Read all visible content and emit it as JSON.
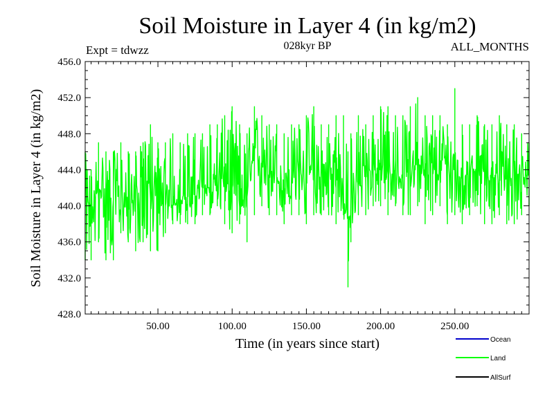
{
  "chart_data": {
    "type": "line",
    "title": "Soil Moisture in Layer 4 (in kg/m2)",
    "subtitle_left": "Expt = tdwzz",
    "subtitle_center": "028kyr BP",
    "subtitle_right": "ALL_MONTHS",
    "xlabel": "Time (in years since start)",
    "ylabel": "Soil Moisture in Layer 4 (in kg/m2)",
    "xlim": [
      1,
      300
    ],
    "ylim": [
      428,
      456
    ],
    "xticks": [
      50,
      100,
      150,
      200,
      250
    ],
    "xtick_labels": [
      "50.00",
      "100.00",
      "150.00",
      "200.00",
      "250.00"
    ],
    "yticks": [
      428,
      432,
      436,
      440,
      444,
      448,
      452,
      456
    ],
    "ytick_labels": [
      "428.0",
      "432.0",
      "436.0",
      "440.0",
      "444.0",
      "448.0",
      "452.0",
      "456.0"
    ],
    "grid": false,
    "legend_position": "bottom-right",
    "legend": [
      {
        "name": "Ocean",
        "color": "#0000cc"
      },
      {
        "name": "Land",
        "color": "#00ff00"
      },
      {
        "name": "AllSurf",
        "color": "#000000"
      }
    ],
    "series": [
      {
        "name": "Land",
        "color": "#00ff00",
        "x": [
          1,
          5,
          10,
          15,
          20,
          25,
          30,
          35,
          40,
          45,
          50,
          55,
          60,
          65,
          70,
          75,
          80,
          85,
          90,
          95,
          100,
          105,
          110,
          115,
          120,
          125,
          130,
          135,
          140,
          145,
          150,
          155,
          160,
          165,
          170,
          175,
          178,
          180,
          185,
          190,
          195,
          200,
          205,
          210,
          215,
          220,
          225,
          230,
          235,
          240,
          245,
          250,
          255,
          260,
          265,
          270,
          275,
          280,
          285,
          290,
          295,
          300
        ],
        "values": [
          441,
          439,
          442,
          441,
          442,
          440,
          440,
          441,
          442,
          442,
          441,
          440,
          440,
          441,
          441,
          441,
          442,
          442,
          443,
          443,
          442,
          442,
          441,
          445,
          445,
          444,
          443,
          442,
          443,
          444,
          443,
          444,
          443,
          443,
          443,
          442,
          438,
          440,
          443,
          444,
          444,
          444,
          443,
          444,
          443,
          444,
          445,
          443,
          444,
          444,
          444,
          444,
          443,
          444,
          444,
          444,
          443,
          444,
          443,
          443,
          444,
          444
        ],
        "min": [
          434,
          434,
          436,
          434,
          434,
          437,
          436,
          435,
          436,
          435,
          435,
          437,
          438,
          438,
          438,
          438,
          439,
          439,
          440,
          438,
          437,
          438,
          436,
          439,
          440,
          439,
          439,
          438,
          439,
          439,
          438,
          439,
          439,
          439,
          438,
          439,
          431,
          436,
          439,
          439,
          440,
          440,
          439,
          440,
          439,
          439,
          440,
          438,
          439,
          440,
          438,
          439,
          438,
          439,
          440,
          438,
          438,
          439,
          438,
          438,
          439,
          440
        ],
        "max": [
          446,
          444,
          447,
          446,
          446,
          447,
          446,
          446,
          447,
          449,
          447,
          447,
          448,
          447,
          448,
          448,
          448,
          449,
          449,
          450,
          451,
          449,
          448,
          451,
          450,
          449,
          449,
          448,
          449,
          449,
          450,
          451,
          449,
          449,
          450,
          450,
          446,
          448,
          450,
          449,
          450,
          451,
          451,
          450,
          450,
          451,
          452,
          450,
          450,
          450,
          449,
          453,
          449,
          449,
          450,
          449,
          449,
          450,
          449,
          449,
          448,
          447
        ]
      }
    ]
  }
}
